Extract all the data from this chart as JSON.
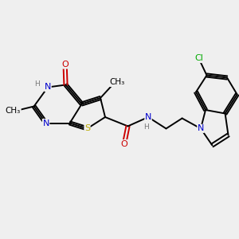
{
  "bg_color": "#efefef",
  "bond_color": "#000000",
  "atom_colors": {
    "N": "#0000cc",
    "O": "#cc0000",
    "S": "#bbaa00",
    "Cl": "#00aa00",
    "H": "#777777",
    "C": "#000000"
  },
  "bond_lw": 1.4,
  "font_size": 8.0
}
